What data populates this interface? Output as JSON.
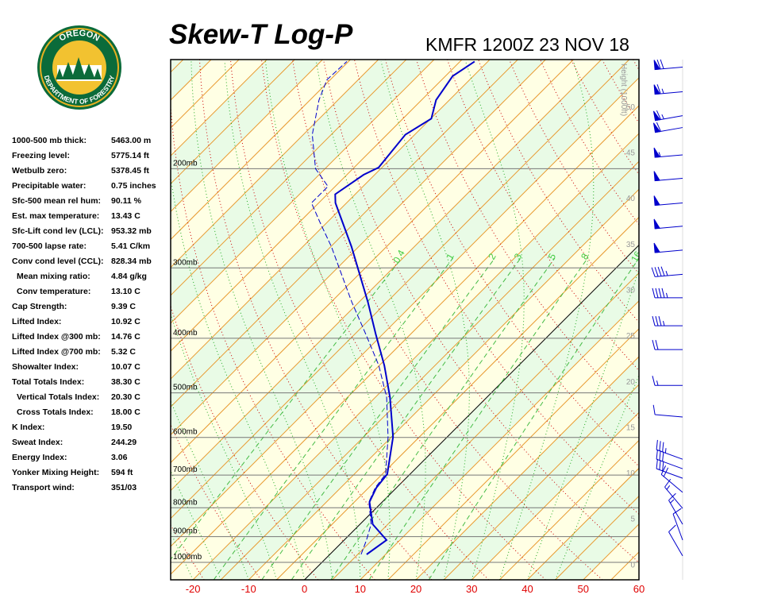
{
  "logo": {
    "top": "OREGON",
    "bottom": "DEPARTMENT OF FORESTRY"
  },
  "stats": [
    {
      "label": "1000-500 mb thick:",
      "value": "5463.00 m"
    },
    {
      "label": "Freezing level:",
      "value": "5775.14 ft"
    },
    {
      "label": "Wetbulb zero:",
      "value": "5378.45 ft"
    },
    {
      "label": "Precipitable water:",
      "value": "0.75 inches"
    },
    {
      "label": "Sfc-500 mean rel hum:",
      "value": "90.11 %"
    },
    {
      "label": "Est. max temperature:",
      "value": "13.43 C"
    },
    {
      "label": "Sfc-Lift cond lev (LCL):",
      "value": "953.32 mb"
    },
    {
      "label": "700-500 lapse rate:",
      "value": "5.41 C/km"
    },
    {
      "label": "Conv cond level (CCL):",
      "value": "828.34 mb"
    },
    {
      "label": "Mean mixing ratio:",
      "value": "4.84 g/kg"
    },
    {
      "label": "Conv temperature:",
      "value": "13.10 C"
    },
    {
      "label": "Cap Strength:",
      "value": "9.39 C"
    },
    {
      "label": "Lifted Index:",
      "value": "10.92 C"
    },
    {
      "label": "Lifted Index @300 mb:",
      "value": "14.76 C"
    },
    {
      "label": "Lifted Index @700 mb:",
      "value": "5.32 C"
    },
    {
      "label": "Showalter Index:",
      "value": "10.07 C"
    },
    {
      "label": "Total Totals Index:",
      "value": "38.30 C"
    },
    {
      "label": "Vertical Totals Index:",
      "value": "20.30 C"
    },
    {
      "label": "Cross Totals Index:",
      "value": "18.00 C"
    },
    {
      "label": "K Index:",
      "value": "19.50"
    },
    {
      "label": "Sweat Index:",
      "value": "244.29"
    },
    {
      "label": "Energy Index:",
      "value": "3.06"
    },
    {
      "label": "Yonker Mixing Height:",
      "value": "594 ft"
    },
    {
      "label": "Transport wind:",
      "value": "351/03"
    }
  ],
  "chart_data": {
    "type": "skewt",
    "title": "Skew-T Log-P",
    "subtitle": "KMFR 1200Z 23 NOV 18",
    "xlim": [
      -24,
      60
    ],
    "xticks": [
      -20,
      -10,
      0,
      10,
      20,
      30,
      40,
      50,
      60
    ],
    "ylim": [
      1074,
      128
    ],
    "log_scale": true,
    "yticks": [
      {
        "value": 200,
        "label": "200mb"
      },
      {
        "value": 300,
        "label": "300mb"
      },
      {
        "value": 400,
        "label": "400mb"
      },
      {
        "value": 500,
        "label": "500mb"
      },
      {
        "value": 600,
        "label": "600mb"
      },
      {
        "value": 700,
        "label": "700mb"
      },
      {
        "value": 800,
        "label": "800mb"
      },
      {
        "value": 900,
        "label": "900mb"
      },
      {
        "value": 1000,
        "label": "1000mb"
      }
    ],
    "height_label": "Height (1000ft)",
    "hlim": [
      -1.7,
      55.1
    ],
    "hticks": [
      0,
      5,
      10,
      15,
      20,
      25,
      30,
      35,
      40,
      45,
      50
    ],
    "mixing_ratios": [
      0.4,
      1,
      2,
      3,
      5,
      8,
      16
    ],
    "temperature": {
      "color": "#0000cc",
      "pressure": [
        968,
        913,
        856,
        781,
        737,
        697,
        599,
        509,
        447,
        393,
        345,
        275,
        230,
        222,
        205,
        199,
        174,
        163,
        151,
        137,
        129
      ],
      "values": [
        6.6,
        7.6,
        2.3,
        -2.3,
        -3.6,
        -4.1,
        -9.7,
        -17.4,
        -24.1,
        -31.3,
        -38.4,
        -51.3,
        -62.0,
        -63.6,
        -62.0,
        -60.6,
        -61.7,
        -59.9,
        -62.4,
        -63.7,
        -62.4
      ]
    },
    "dewpoint": {
      "color": "#0000cc",
      "pressure": [
        968,
        913,
        856,
        781,
        737,
        697,
        599,
        509,
        447,
        393,
        345,
        303,
        275,
        249,
        230,
        215,
        200,
        174,
        151,
        139,
        129
      ],
      "values": [
        5.6,
        4.0,
        2.0,
        -2.4,
        -3.8,
        -4.4,
        -10.6,
        -18.0,
        -25.1,
        -33.1,
        -41.3,
        -49.1,
        -54.9,
        -61.3,
        -66.3,
        -66.3,
        -71.7,
        -78.4,
        -83.4,
        -85.6,
        -85.3
      ]
    },
    "winds": {
      "color": "#0000cc",
      "pressure": [
        132,
        146,
        161,
        169,
        189,
        208,
        230,
        253,
        279,
        308,
        339,
        380,
        419,
        485,
        552,
        656,
        682,
        709,
        751,
        802,
        856,
        913,
        974
      ],
      "direction": [
        265,
        265,
        260,
        260,
        265,
        265,
        265,
        265,
        265,
        265,
        270,
        270,
        270,
        270,
        275,
        290,
        290,
        290,
        310,
        320,
        330,
        340,
        330
      ],
      "speed": [
        70,
        65,
        65,
        60,
        55,
        50,
        50,
        50,
        50,
        45,
        45,
        35,
        20,
        15,
        10,
        35,
        30,
        30,
        20,
        15,
        15,
        10,
        10
      ]
    }
  }
}
